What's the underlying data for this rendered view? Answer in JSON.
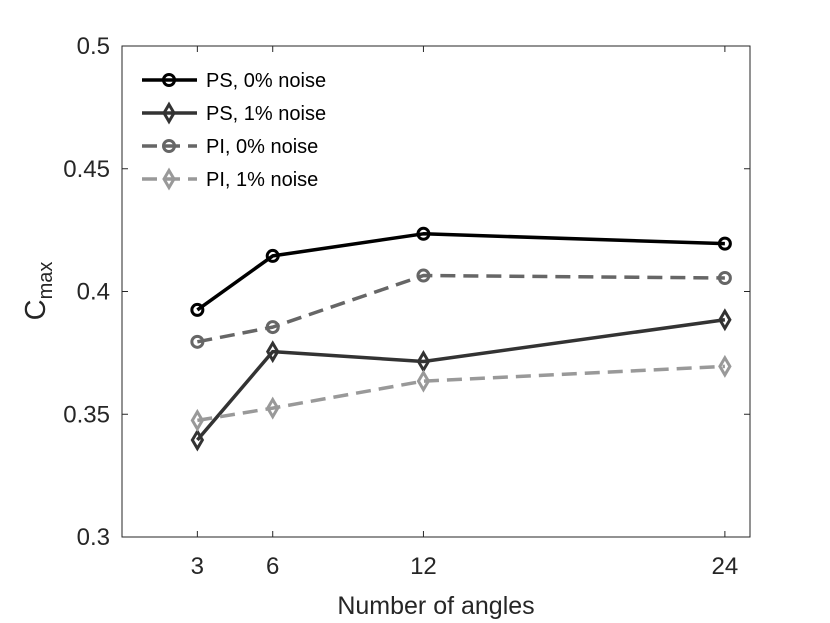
{
  "chart_data": {
    "type": "line",
    "title": "",
    "xlabel": "Number of angles",
    "ylabel_main": "C",
    "ylabel_sub": "max",
    "xlim": [
      0,
      25
    ],
    "ylim": [
      0.3,
      0.5
    ],
    "xticks": [
      3,
      6,
      12,
      24
    ],
    "xtick_labels": [
      "3",
      "6",
      "12",
      "24"
    ],
    "yticks": [
      0.3,
      0.35,
      0.4,
      0.45,
      0.5
    ],
    "ytick_labels": [
      "0.3",
      "0.35",
      "0.4",
      "0.45",
      "0.5"
    ],
    "grid": false,
    "legend_position": "top-left",
    "x": [
      3,
      6,
      12,
      24
    ],
    "series": [
      {
        "name": "PS, 0% noise",
        "values": [
          0.3925,
          0.4145,
          0.4235,
          0.4195
        ],
        "color": "#000000",
        "dash": "solid",
        "marker": "circle"
      },
      {
        "name": "PS, 1% noise",
        "values": [
          0.3395,
          0.3755,
          0.3715,
          0.3885
        ],
        "color": "#333333",
        "dash": "solid",
        "marker": "diamond"
      },
      {
        "name": "PI, 0% noise",
        "values": [
          0.3795,
          0.3855,
          0.4065,
          0.4055
        ],
        "color": "#666666",
        "dash": "dashed",
        "marker": "circle"
      },
      {
        "name": "PI, 1% noise",
        "values": [
          0.3475,
          0.3525,
          0.3635,
          0.3695
        ],
        "color": "#999999",
        "dash": "dashed",
        "marker": "diamond"
      }
    ]
  }
}
